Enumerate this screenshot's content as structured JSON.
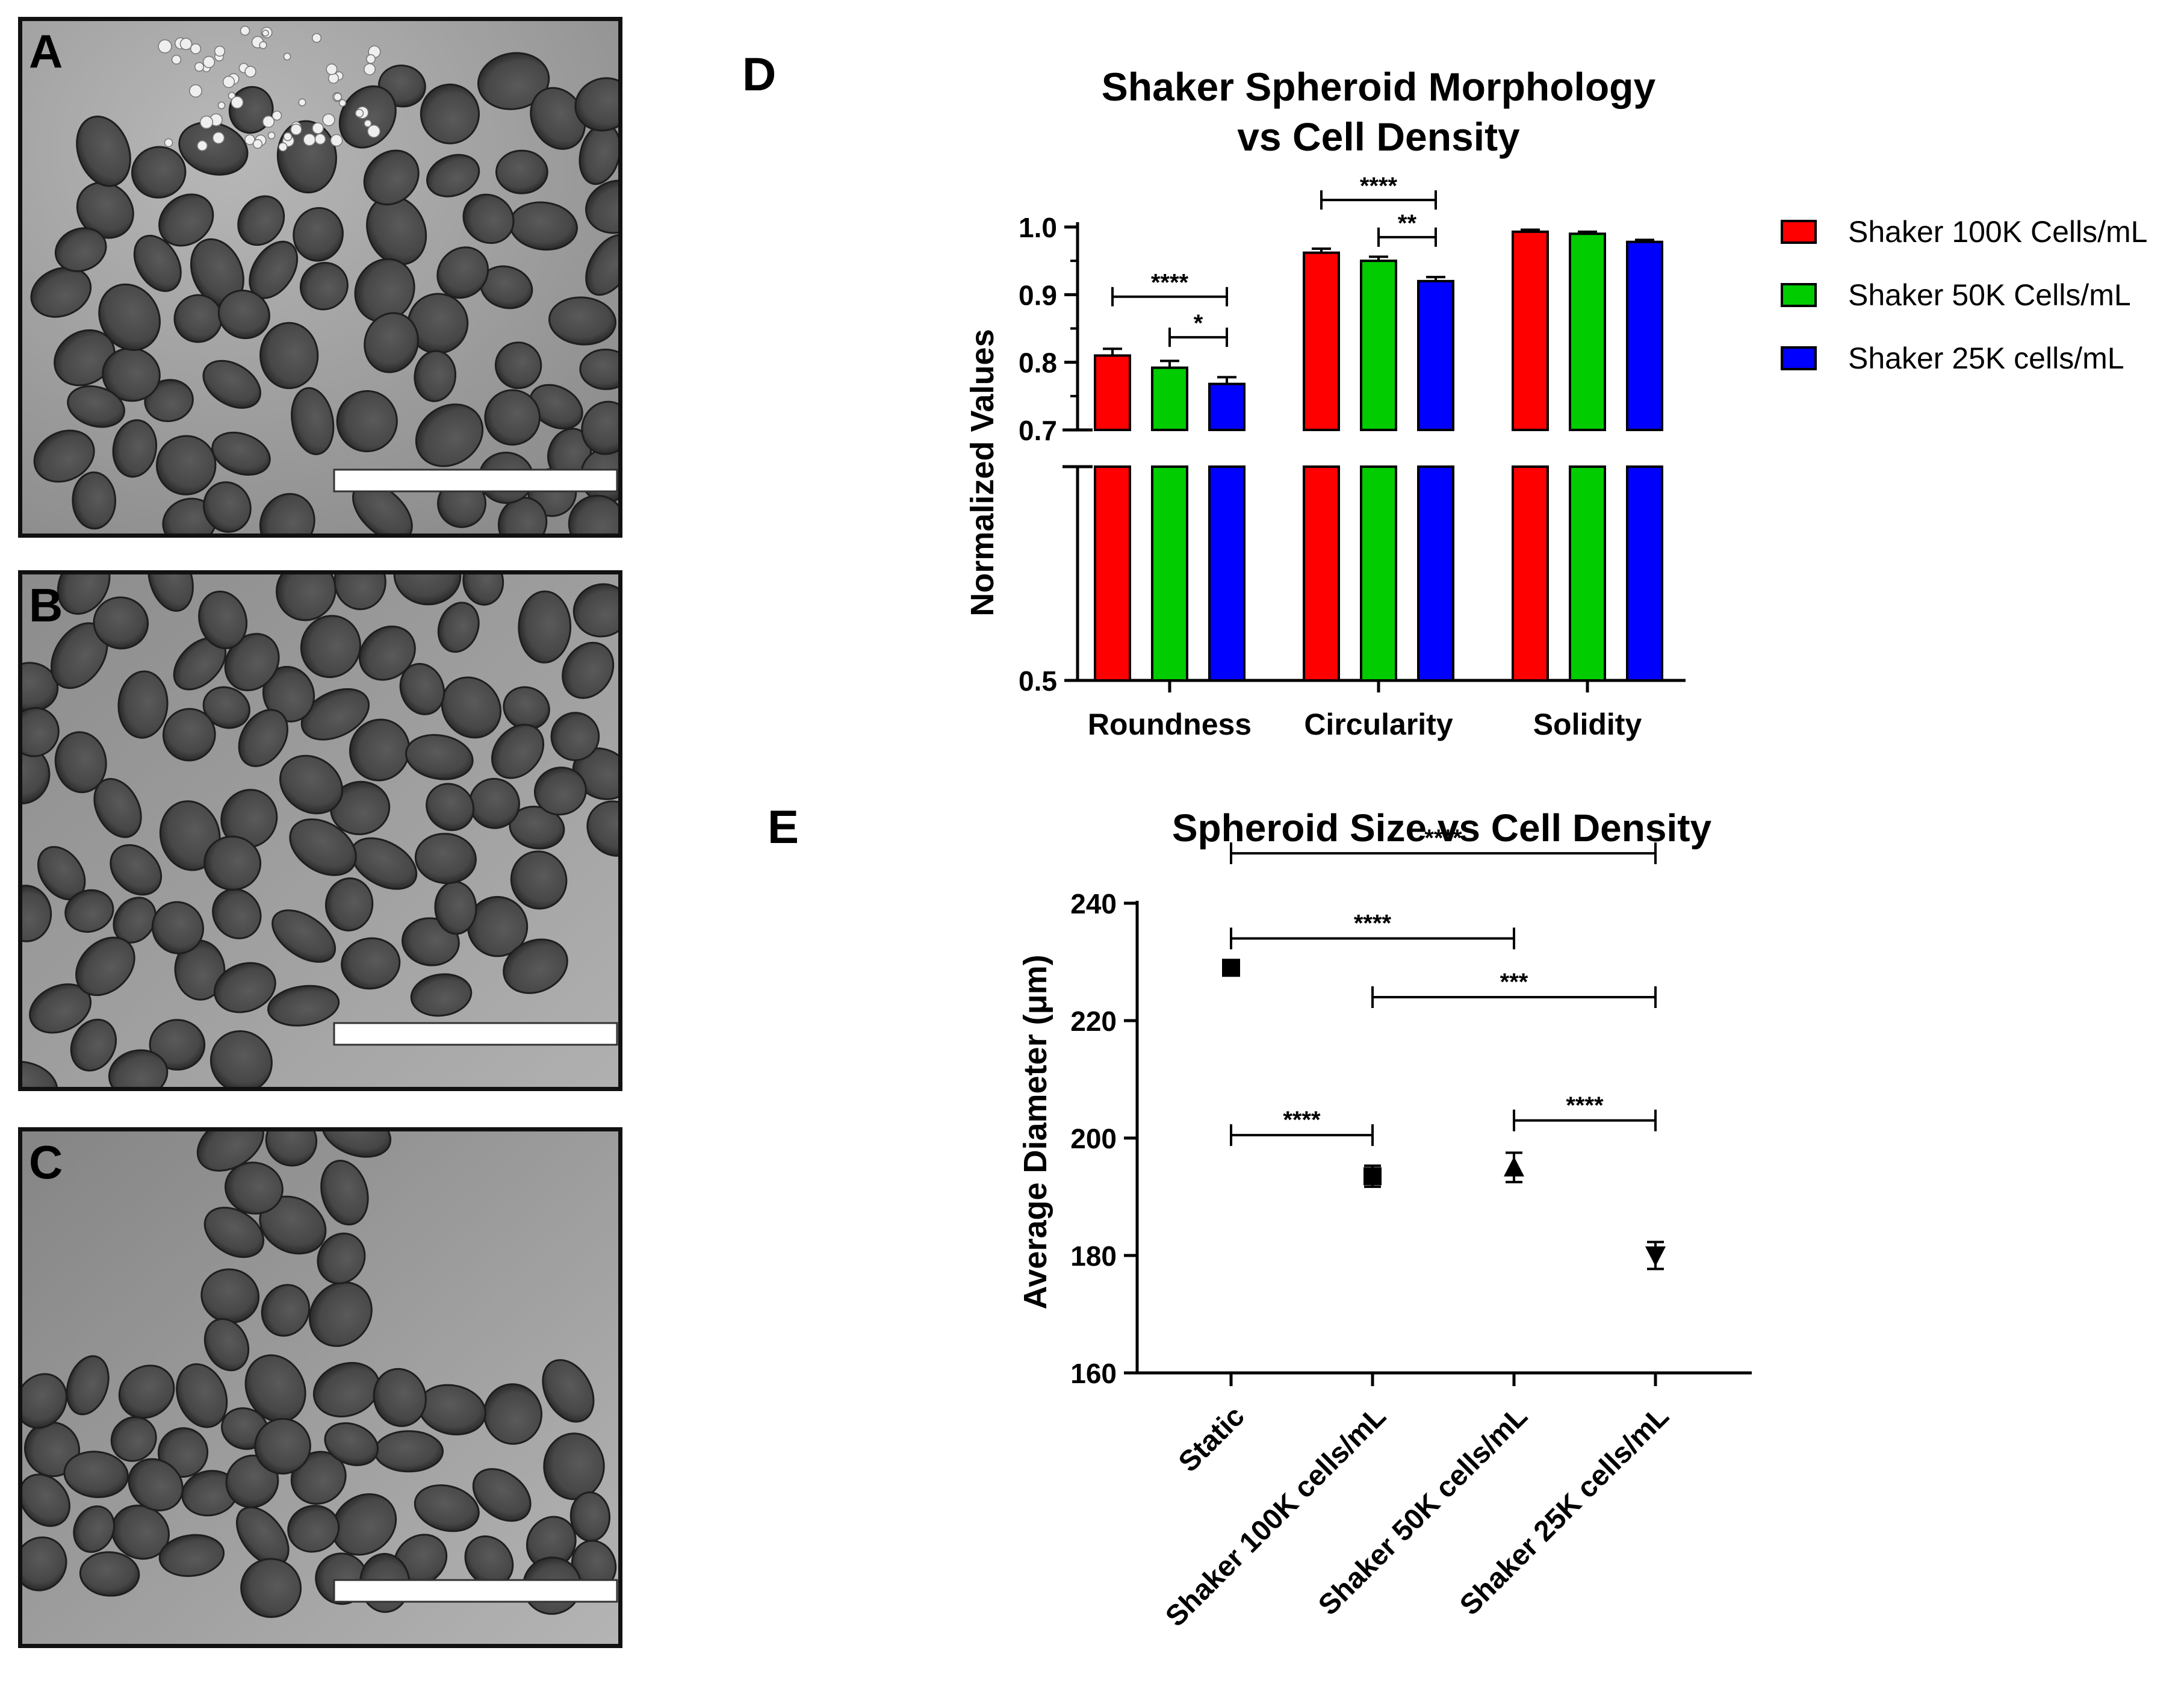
{
  "panels": {
    "a": {
      "letter": "A"
    },
    "b": {
      "letter": "B"
    },
    "c": {
      "letter": "C"
    },
    "d": {
      "letter": "D"
    },
    "e": {
      "letter": "E"
    }
  },
  "chart_data": [
    {
      "id": "D",
      "type": "bar",
      "title": "Shaker Spheroid Morphology\nvs Cell Density",
      "xlabel": "",
      "ylabel": "Normalized Values",
      "categories": [
        "Roundness",
        "Circularity",
        "Solidity"
      ],
      "ylim": [
        0.5,
        1.0
      ],
      "axis_break": [
        0.7,
        0.7
      ],
      "yticks": [
        "1.0",
        "0.9",
        "0.8",
        "0.7",
        "0.5"
      ],
      "legend_position": "right",
      "series": [
        {
          "name": "Shaker 100K Cells/mL",
          "color": "#ff0000",
          "values": [
            0.81,
            0.962,
            0.993
          ],
          "errors": [
            0.01,
            0.006,
            0.003
          ]
        },
        {
          "name": "Shaker 50K Cells/mL",
          "color": "#00cc00",
          "values": [
            0.792,
            0.95,
            0.99
          ],
          "errors": [
            0.01,
            0.006,
            0.003
          ]
        },
        {
          "name": "Shaker 25K cells/mL",
          "color": "#0000ff",
          "values": [
            0.768,
            0.92,
            0.978
          ],
          "errors": [
            0.01,
            0.006,
            0.003
          ]
        }
      ],
      "significance": [
        {
          "category": 0,
          "from": 0,
          "to": 2,
          "y": 0.897,
          "label": "****"
        },
        {
          "category": 0,
          "from": 1,
          "to": 2,
          "y": 0.837,
          "label": "*"
        },
        {
          "category": 1,
          "from": 0,
          "to": 2,
          "y": 1.04,
          "label": "****"
        },
        {
          "category": 1,
          "from": 1,
          "to": 2,
          "y": 0.985,
          "label": "**"
        }
      ]
    },
    {
      "id": "E",
      "type": "scatter",
      "title": "Spheroid Size vs Cell Density",
      "xlabel": "",
      "ylabel": "Average Diameter (μm)",
      "categories": [
        "Static",
        "Shaker 100K cells/mL",
        "Shaker 50K cells/mL",
        "Shaker 25K cells/mL"
      ],
      "ylim": [
        160,
        240
      ],
      "yticks": [
        "240",
        "220",
        "200",
        "180",
        "160"
      ],
      "points": [
        {
          "category": 0,
          "y": 229,
          "err": 1.0,
          "marker": "square"
        },
        {
          "category": 1,
          "y": 193.5,
          "err": 1.8,
          "marker": "square"
        },
        {
          "category": 2,
          "y": 195,
          "err": 2.5,
          "marker": "triangle-up"
        },
        {
          "category": 3,
          "y": 180,
          "err": 2.3,
          "marker": "triangle-down"
        }
      ],
      "significance": [
        {
          "from": 0,
          "to": 3,
          "y": 248.5,
          "label": "****"
        },
        {
          "from": 0,
          "to": 2,
          "y": 234,
          "label": "****"
        },
        {
          "from": 1,
          "to": 3,
          "y": 224,
          "label": "***"
        },
        {
          "from": 0,
          "to": 1,
          "y": 200.5,
          "label": "****"
        },
        {
          "from": 2,
          "to": 3,
          "y": 203,
          "label": "****"
        }
      ]
    }
  ]
}
